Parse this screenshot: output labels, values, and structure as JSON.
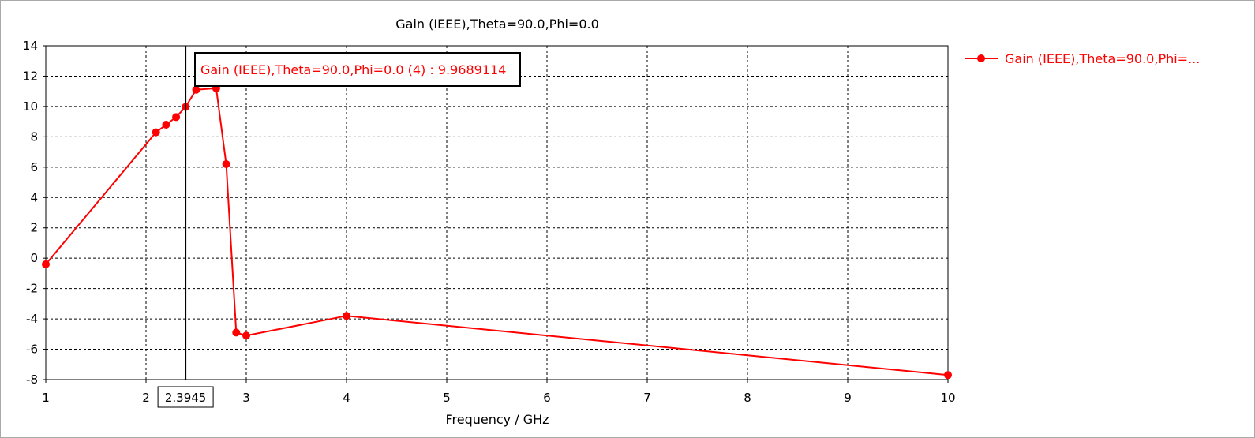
{
  "chart_data": {
    "type": "line",
    "title": "Gain (IEEE),Theta=90.0,Phi=0.0",
    "xlabel": "Frequency / GHz",
    "ylabel": "",
    "xlim": [
      1,
      10
    ],
    "ylim": [
      -8,
      14
    ],
    "x_ticks": [
      1,
      2,
      3,
      4,
      5,
      6,
      7,
      8,
      9,
      10
    ],
    "y_ticks": [
      14,
      12,
      10,
      8,
      6,
      4,
      2,
      0,
      -2,
      -4,
      -6,
      -8
    ],
    "grid": true,
    "legend_position": "right",
    "series": [
      {
        "name": "Gain (IEEE),Theta=90.0,Phi=...",
        "color": "#ff0000",
        "x": [
          1,
          2.1,
          2.2,
          2.3,
          2.3945,
          2.5,
          2.7,
          2.8,
          2.9,
          3,
          4,
          10
        ],
        "y": [
          -0.4,
          8.3,
          8.8,
          9.3,
          9.9689114,
          11.1,
          11.2,
          6.2,
          -4.9,
          -5.1,
          -3.8,
          -7.7
        ]
      }
    ],
    "marker": {
      "x_label": "2.3945",
      "x": 2.3945,
      "annotation": "Gain (IEEE),Theta=90.0,Phi=0.0 (4) : 9.9689114",
      "annotation_color": "#ff0000"
    }
  }
}
